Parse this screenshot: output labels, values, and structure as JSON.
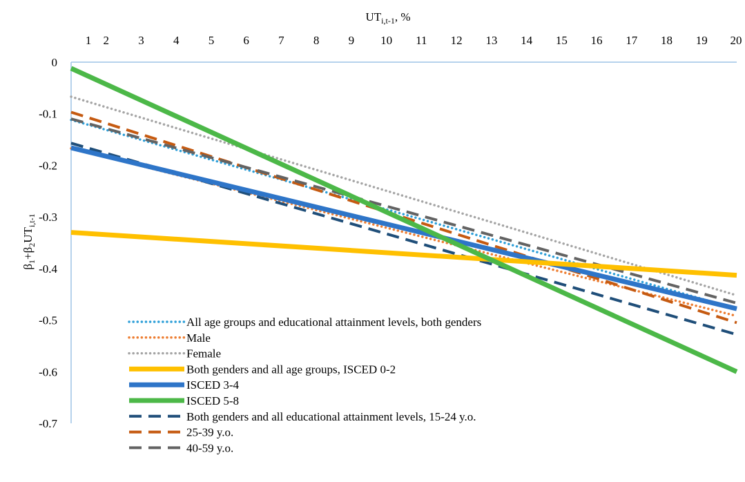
{
  "chart_data": {
    "type": "line",
    "xlabel": {
      "base": "UT",
      "sub": "i,t-1",
      "suffix": ", %"
    },
    "ylabel": {
      "p1": "β",
      "s1": "1",
      "p2": "+β",
      "s2": "2",
      "p3": "UT",
      "s3": "i,t-1"
    },
    "x": [
      1,
      2,
      3,
      4,
      5,
      6,
      7,
      8,
      9,
      10,
      11,
      12,
      13,
      14,
      15,
      16,
      17,
      18,
      19,
      20
    ],
    "xlim": [
      1,
      20
    ],
    "ylim": [
      -0.7,
      0
    ],
    "yticks": [
      0,
      -0.1,
      -0.2,
      -0.3,
      -0.4,
      -0.5,
      -0.6,
      -0.7
    ],
    "ytick_labels": [
      "0",
      "-0.1",
      "-0.2",
      "-0.3",
      "-0.4",
      "-0.5",
      "-0.6",
      "-0.7"
    ],
    "x_axis_position": "top",
    "grid": false,
    "legend_position": "bottom-left",
    "series": [
      {
        "name": "All age groups and educational attainment levels, both genders",
        "color": "#2E9FD8",
        "style": "dotted",
        "start": -0.112,
        "end": -0.478
      },
      {
        "name": "Male",
        "color": "#ED7D31",
        "style": "dotted",
        "start": -0.167,
        "end": -0.492
      },
      {
        "name": "Female",
        "color": "#A5A5A5",
        "style": "dotted",
        "start": -0.067,
        "end": -0.452
      },
      {
        "name": "Both genders and all age groups, ISCED 0-2",
        "color": "#FFC000",
        "style": "solid-thick",
        "start": -0.33,
        "end": -0.413
      },
      {
        "name": "ISCED 3-4",
        "color": "#2E75C8",
        "style": "solid-thick",
        "start": -0.166,
        "end": -0.478
      },
      {
        "name": "ISCED 5-8",
        "color": "#4CB848",
        "style": "solid-thick",
        "start": -0.012,
        "end": -0.6
      },
      {
        "name": "Both genders and all educational attainment levels, 15-24 y.o.",
        "color": "#1F4E79",
        "style": "dashed",
        "start": -0.157,
        "end": -0.528
      },
      {
        "name": "25-39 y.o.",
        "color": "#C55A11",
        "style": "dashed",
        "start": -0.097,
        "end": -0.505
      },
      {
        "name": "40-59 y.o.",
        "color": "#636363",
        "style": "dashed",
        "start": -0.11,
        "end": -0.467
      }
    ],
    "axis_color": "#9DC3E6"
  }
}
